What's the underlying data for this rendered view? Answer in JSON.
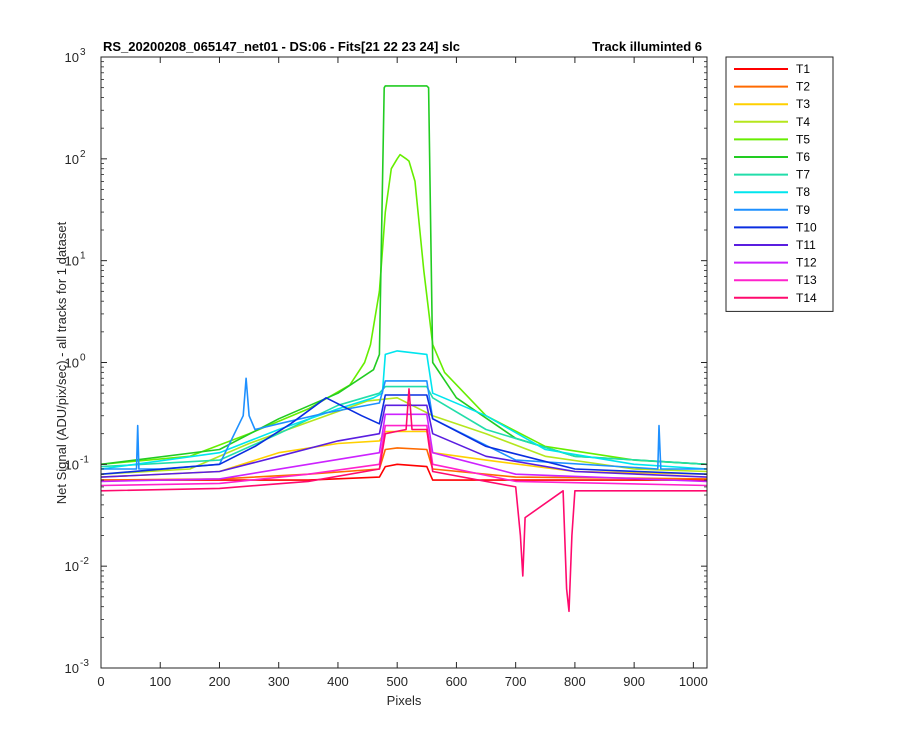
{
  "chart_data": {
    "type": "line",
    "title_left": "RS_20200208_065147_net01 - DS:06 - Fits[21   22  23  24]    slc",
    "title_right": "Track illuminted 6",
    "xlabel": "Pixels",
    "ylabel": "Net Signal (ADU/pix/sec) - all tracks for 1 dataset",
    "xlim": [
      0,
      1023
    ],
    "ylim": [
      0.001,
      1000
    ],
    "yscale": "log",
    "grid": false,
    "legend_position": "outside-top-right",
    "x_ticks": [
      0,
      100,
      200,
      300,
      400,
      500,
      600,
      700,
      800,
      900,
      1000
    ],
    "x_tick_labels": [
      "0",
      "100",
      "200",
      "300",
      "400",
      "500",
      "600",
      "700",
      "800",
      "900",
      "1000"
    ],
    "y_ticks": [
      0.001,
      0.01,
      0.1,
      1,
      10,
      100,
      1000
    ],
    "y_tick_labels": [
      {
        "base": "10",
        "exp": "-3"
      },
      {
        "base": "10",
        "exp": "-2"
      },
      {
        "base": "10",
        "exp": "-1"
      },
      {
        "base": "10",
        "exp": "0"
      },
      {
        "base": "10",
        "exp": "1"
      },
      {
        "base": "10",
        "exp": "2"
      },
      {
        "base": "10",
        "exp": "3"
      }
    ],
    "series": [
      {
        "name": "T1",
        "color": "#ff0000",
        "x": [
          0,
          200,
          350,
          470,
          480,
          500,
          550,
          560,
          700,
          1023
        ],
        "y": [
          0.07,
          0.07,
          0.07,
          0.075,
          0.095,
          0.1,
          0.095,
          0.07,
          0.07,
          0.07
        ]
      },
      {
        "name": "T2",
        "color": "#ff6a00",
        "x": [
          0,
          200,
          350,
          470,
          480,
          500,
          550,
          560,
          700,
          1023
        ],
        "y": [
          0.07,
          0.072,
          0.08,
          0.09,
          0.14,
          0.145,
          0.14,
          0.09,
          0.075,
          0.072
        ]
      },
      {
        "name": "T3",
        "color": "#ffd000",
        "x": [
          0,
          200,
          300,
          400,
          470,
          480,
          550,
          560,
          650,
          800,
          1023
        ],
        "y": [
          0.075,
          0.085,
          0.13,
          0.16,
          0.17,
          0.21,
          0.21,
          0.13,
          0.11,
          0.085,
          0.08
        ]
      },
      {
        "name": "T4",
        "color": "#b5e61d",
        "x": [
          0,
          150,
          250,
          350,
          450,
          500,
          560,
          650,
          750,
          900,
          1023
        ],
        "y": [
          0.08,
          0.09,
          0.16,
          0.26,
          0.42,
          0.45,
          0.3,
          0.2,
          0.12,
          0.09,
          0.085
        ]
      },
      {
        "name": "T5",
        "color": "#66ee00",
        "x": [
          0,
          150,
          250,
          350,
          420,
          445,
          455,
          470,
          480,
          490,
          500,
          505,
          515,
          520,
          530,
          545,
          560,
          580,
          650,
          750,
          900,
          1023
        ],
        "y": [
          0.1,
          0.12,
          0.2,
          0.35,
          0.6,
          1.0,
          1.5,
          5,
          30,
          80,
          100,
          110,
          100,
          95,
          60,
          8,
          1.5,
          0.8,
          0.3,
          0.15,
          0.11,
          0.1
        ]
      },
      {
        "name": "T6",
        "color": "#22cc22",
        "x": [
          0,
          200,
          300,
          400,
          460,
          470,
          478,
          480,
          550,
          553,
          560,
          600,
          700,
          800,
          1023
        ],
        "y": [
          0.1,
          0.14,
          0.28,
          0.5,
          0.85,
          1.2,
          500,
          520,
          520,
          500,
          1.0,
          0.45,
          0.18,
          0.12,
          0.1
        ]
      },
      {
        "name": "T7",
        "color": "#22ddaa",
        "x": [
          0,
          200,
          300,
          400,
          470,
          480,
          550,
          560,
          650,
          800,
          1023
        ],
        "y": [
          0.095,
          0.11,
          0.2,
          0.38,
          0.5,
          0.58,
          0.58,
          0.45,
          0.22,
          0.12,
          0.1
        ]
      },
      {
        "name": "T8",
        "color": "#00e5ee",
        "x": [
          0,
          200,
          300,
          400,
          460,
          475,
          480,
          500,
          550,
          560,
          650,
          750,
          900,
          1023
        ],
        "y": [
          0.09,
          0.13,
          0.22,
          0.35,
          0.45,
          0.5,
          1.2,
          1.3,
          1.2,
          0.5,
          0.3,
          0.14,
          0.1,
          0.09
        ]
      },
      {
        "name": "T9",
        "color": "#1e90ff",
        "x": [
          0,
          60,
          62,
          64,
          100,
          200,
          240,
          245,
          250,
          260,
          300,
          380,
          470,
          480,
          550,
          560,
          700,
          940,
          942,
          945,
          1023
        ],
        "y": [
          0.09,
          0.09,
          0.24,
          0.09,
          0.09,
          0.1,
          0.3,
          0.7,
          0.3,
          0.22,
          0.25,
          0.32,
          0.4,
          0.66,
          0.66,
          0.28,
          0.11,
          0.09,
          0.24,
          0.09,
          0.09
        ]
      },
      {
        "name": "T10",
        "color": "#0a2ee0",
        "x": [
          0,
          200,
          260,
          320,
          380,
          440,
          470,
          480,
          550,
          560,
          650,
          800,
          1023
        ],
        "y": [
          0.08,
          0.1,
          0.15,
          0.25,
          0.45,
          0.3,
          0.25,
          0.48,
          0.48,
          0.28,
          0.15,
          0.09,
          0.08
        ]
      },
      {
        "name": "T11",
        "color": "#5a1ee0",
        "x": [
          0,
          200,
          300,
          400,
          470,
          480,
          550,
          560,
          650,
          800,
          1023
        ],
        "y": [
          0.075,
          0.085,
          0.12,
          0.17,
          0.2,
          0.38,
          0.38,
          0.2,
          0.12,
          0.085,
          0.075
        ]
      },
      {
        "name": "T12",
        "color": "#cc22ff",
        "x": [
          0,
          200,
          350,
          470,
          480,
          550,
          560,
          700,
          1023
        ],
        "y": [
          0.068,
          0.072,
          0.1,
          0.13,
          0.31,
          0.31,
          0.13,
          0.08,
          0.068
        ]
      },
      {
        "name": "T13",
        "color": "#ff22cc",
        "x": [
          0,
          200,
          350,
          470,
          480,
          550,
          560,
          700,
          1023
        ],
        "y": [
          0.062,
          0.065,
          0.08,
          0.1,
          0.24,
          0.24,
          0.1,
          0.068,
          0.062
        ]
      },
      {
        "name": "T14",
        "color": "#ff0a6e",
        "x": [
          0,
          200,
          350,
          470,
          480,
          515,
          520,
          525,
          550,
          560,
          700,
          708,
          712,
          716,
          780,
          786,
          790,
          795,
          800,
          1023
        ],
        "y": [
          0.055,
          0.058,
          0.068,
          0.09,
          0.2,
          0.22,
          0.55,
          0.22,
          0.22,
          0.085,
          0.06,
          0.02,
          0.008,
          0.03,
          0.055,
          0.006,
          0.0036,
          0.02,
          0.055,
          0.055
        ]
      }
    ]
  }
}
